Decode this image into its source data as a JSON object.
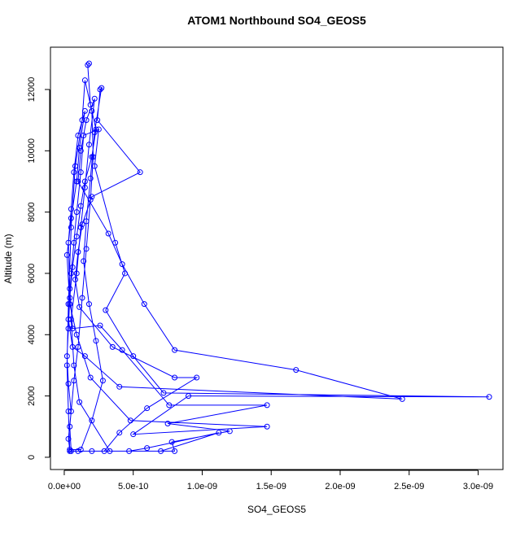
{
  "chart_data": {
    "type": "line",
    "title": "ATOM1 Northbound SO4_GEOS5",
    "x_label": "SO4_GEOS5",
    "y_label": "Altitude (m)",
    "color": "#0000ff",
    "xlim": [
      -1e-10,
      3.18e-09
    ],
    "ylim": [
      -400,
      13380
    ],
    "xticks": [
      {
        "value": 0,
        "label": "0.0e+00"
      },
      {
        "value": 5e-10,
        "label": "5.0e-10"
      },
      {
        "value": 1e-09,
        "label": "1.0e-09"
      },
      {
        "value": 1.5e-09,
        "label": "1.5e-09"
      },
      {
        "value": 2e-09,
        "label": "2.0e-09"
      },
      {
        "value": 2.5e-09,
        "label": "2.5e-09"
      },
      {
        "value": 3e-09,
        "label": "3.0e-09"
      }
    ],
    "yticks": [
      0,
      2000,
      4000,
      6000,
      8000,
      10000,
      12000
    ],
    "x": [
      1.8e-10,
      1.7e-10,
      1.9e-10,
      2.3e-10,
      2e-10,
      1.5e-10,
      1.2e-10,
      9e-11,
      6e-11,
      4e-11,
      3e-11,
      2e-11,
      3e-11,
      5e-11,
      3e-11,
      4e-11,
      1.2e-10,
      2e-10,
      2.8e-10,
      2.3e-10,
      1.8e-10,
      1.4e-10,
      1.6e-10,
      1.9e-10,
      2.2e-10,
      2.7e-10,
      2.6e-10,
      2.4e-10,
      5.5e-10,
      2e-10,
      1.3e-10,
      1e-10,
      8e-11,
      1.1e-10,
      3.5e-10,
      8e-10,
      9.6e-10,
      6e-10,
      4e-10,
      2.9e-10,
      3.3e-10,
      1.1e-10,
      7e-11,
      5e-11,
      9e-11,
      1.2e-10,
      1.5e-10,
      1.8e-10,
      2.2e-10,
      1.6e-10,
      1.2e-10,
      1e-10,
      3.2e-10,
      4.2e-10,
      5.8e-10,
      8e-10,
      1.68e-09,
      2.45e-09,
      4e-10,
      1.5e-10,
      6e-11,
      3e-11,
      5e-11,
      7e-11,
      9e-11,
      1.2e-10,
      1.4e-10,
      2.5e-10,
      2.2e-10,
      3.7e-10,
      4.4e-10,
      3e-10,
      5e-10,
      7.2e-10,
      3.08e-09,
      9e-10,
      5e-10,
      1.47e-09,
      4.8e-10,
      1.9e-10,
      9e-11,
      4e-11,
      2e-11,
      5e-11,
      9e-11,
      1.1e-10,
      1.5e-10,
      1e-10,
      7e-11,
      5e-11,
      3e-11,
      4e-11,
      6e-11,
      2.6e-10,
      4.2e-10,
      7.6e-10,
      1.47e-09,
      7.5e-10,
      1.2e-09,
      7.8e-10,
      8e-10,
      4.7e-10,
      6e-10,
      1.12e-09,
      7e-10,
      2e-10,
      5e-11,
      4e-11,
      7e-11,
      1e-10,
      1.3e-10,
      1.6e-10,
      1.9e-10,
      2.1e-10,
      2e-10,
      1.5e-10,
      1.3e-10,
      8e-11,
      5e-11,
      3e-11,
      2e-11,
      3e-11,
      4e-11,
      1e-10
    ],
    "values": [
      12850,
      12800,
      11500,
      10700,
      9800,
      9000,
      8200,
      7200,
      6200,
      5200,
      4200,
      3300,
      2400,
      1500,
      600,
      250,
      250,
      1200,
      2500,
      3800,
      5000,
      6400,
      7700,
      9100,
      10600,
      12050,
      12000,
      11000,
      9300,
      8500,
      7600,
      6700,
      5800,
      4900,
      3600,
      2600,
      2600,
      1600,
      800,
      200,
      200,
      1800,
      3000,
      4500,
      6000,
      7500,
      8800,
      10200,
      11700,
      11000,
      10000,
      9000,
      7300,
      6300,
      5000,
      3500,
      2850,
      1900,
      2300,
      3300,
      3600,
      4500,
      6000,
      7000,
      8000,
      9300,
      10500,
      10700,
      9500,
      7000,
      6000,
      4800,
      3300,
      2100,
      1970,
      2000,
      750,
      1000,
      1200,
      2600,
      4000,
      5000,
      6600,
      7800,
      9000,
      10100,
      11300,
      10500,
      9300,
      8100,
      7000,
      5500,
      4200,
      4300,
      3500,
      1700,
      1700,
      1100,
      850,
      500,
      200,
      200,
      300,
      800,
      200,
      200,
      200,
      1000,
      2500,
      3600,
      5200,
      6800,
      8400,
      9800,
      11300,
      12300,
      11000,
      9500,
      7500,
      5000,
      3000,
      1500,
      200,
      200
    ]
  }
}
